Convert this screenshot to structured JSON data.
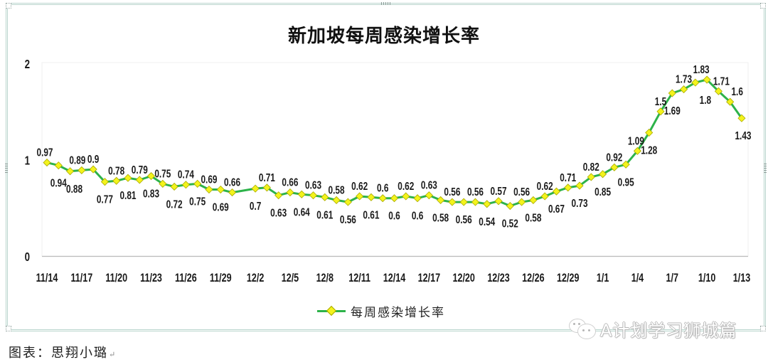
{
  "document": {
    "caption": "图表：思翔小璐",
    "paragraph_mark": "↵",
    "watermark": {
      "icon": "wechat-icon",
      "text": "A计划学习狮城篇"
    }
  },
  "chart_data": {
    "type": "line",
    "title": "新加坡每周感染增长率",
    "xlabel": "",
    "ylabel": "",
    "ylim": [
      0,
      2
    ],
    "y_ticks": [
      0,
      1,
      2
    ],
    "grid": false,
    "legend_position": "bottom",
    "data_labels": true,
    "categories": [
      "11/14",
      "11/15",
      "11/16",
      "11/17",
      "11/18",
      "11/19",
      "11/20",
      "11/21",
      "11/22",
      "11/23",
      "11/24",
      "11/25",
      "11/26",
      "11/27",
      "11/28",
      "11/29",
      "11/30",
      "12/1",
      "12/2",
      "12/3",
      "12/4",
      "12/5",
      "12/6",
      "12/7",
      "12/8",
      "12/9",
      "12/10",
      "12/11",
      "12/12",
      "12/13",
      "12/14",
      "12/15",
      "12/16",
      "12/17",
      "12/18",
      "12/19",
      "12/20",
      "12/21",
      "12/22",
      "12/23",
      "12/24",
      "12/25",
      "12/26",
      "12/27",
      "12/28",
      "12/29",
      "12/30",
      "12/31",
      "1/1",
      "1/2",
      "1/3",
      "1/4",
      "1/5",
      "1/6",
      "1/7",
      "1/8",
      "1/9",
      "1/10",
      "1/11",
      "1/12",
      "1/13"
    ],
    "x_tick_labels": [
      "11/14",
      "11/17",
      "11/20",
      "11/23",
      "11/26",
      "11/29",
      "12/2",
      "12/5",
      "12/8",
      "12/11",
      "12/14",
      "12/17",
      "12/20",
      "12/23",
      "12/26",
      "12/29",
      "1/1",
      "1/4",
      "1/7",
      "1/10",
      "1/13"
    ],
    "x_tick_every": 3,
    "series": [
      {
        "name": "每周感染增长率",
        "color": "#2db34a",
        "marker_color": "#f3f31c",
        "values": [
          0.97,
          0.94,
          0.88,
          0.89,
          0.9,
          0.77,
          0.78,
          0.81,
          0.79,
          0.83,
          0.75,
          0.72,
          0.74,
          0.75,
          0.69,
          0.69,
          0.66,
          null,
          0.7,
          0.71,
          0.63,
          0.66,
          0.64,
          0.63,
          0.61,
          0.58,
          0.56,
          0.62,
          0.61,
          0.6,
          0.6,
          0.62,
          0.6,
          0.63,
          0.58,
          0.56,
          0.56,
          0.56,
          0.54,
          0.57,
          0.52,
          0.56,
          0.58,
          0.62,
          0.67,
          0.71,
          0.73,
          0.82,
          0.85,
          0.92,
          0.95,
          1.09,
          1.28,
          1.5,
          1.69,
          1.73,
          1.8,
          1.83,
          1.71,
          1.6,
          1.43
        ]
      }
    ],
    "label_positions": [
      "a",
      "b",
      "b",
      "a",
      "a",
      "b",
      "a",
      "b",
      "a",
      "b",
      "a",
      "b",
      "a",
      "b",
      "a",
      "b",
      "a",
      null,
      "b",
      "a",
      "b",
      "a",
      "b",
      "a",
      "b",
      "a",
      "b",
      "a",
      "b",
      "a",
      "b",
      "a",
      "b",
      "a",
      "b",
      "a",
      "b",
      "a",
      "b",
      "a",
      "b",
      "a",
      "b",
      "a",
      "b",
      "a",
      "b",
      "a",
      "b",
      "a",
      "b",
      "a",
      "b",
      "a",
      "b",
      "a",
      "b",
      "a",
      "a",
      "a",
      "b"
    ],
    "label_dx": [
      -3,
      0,
      6,
      -6,
      0,
      0,
      0,
      0,
      0,
      0,
      0,
      0,
      0,
      0,
      0,
      0,
      0,
      0,
      0,
      0,
      0,
      0,
      0,
      0,
      0,
      0,
      0,
      0,
      0,
      0,
      0,
      0,
      0,
      0,
      0,
      0,
      0,
      0,
      0,
      0,
      0,
      0,
      0,
      0,
      0,
      0,
      0,
      0,
      0,
      0,
      0,
      -2,
      0,
      0,
      0,
      0,
      14,
      -8,
      4,
      10,
      2
    ]
  }
}
